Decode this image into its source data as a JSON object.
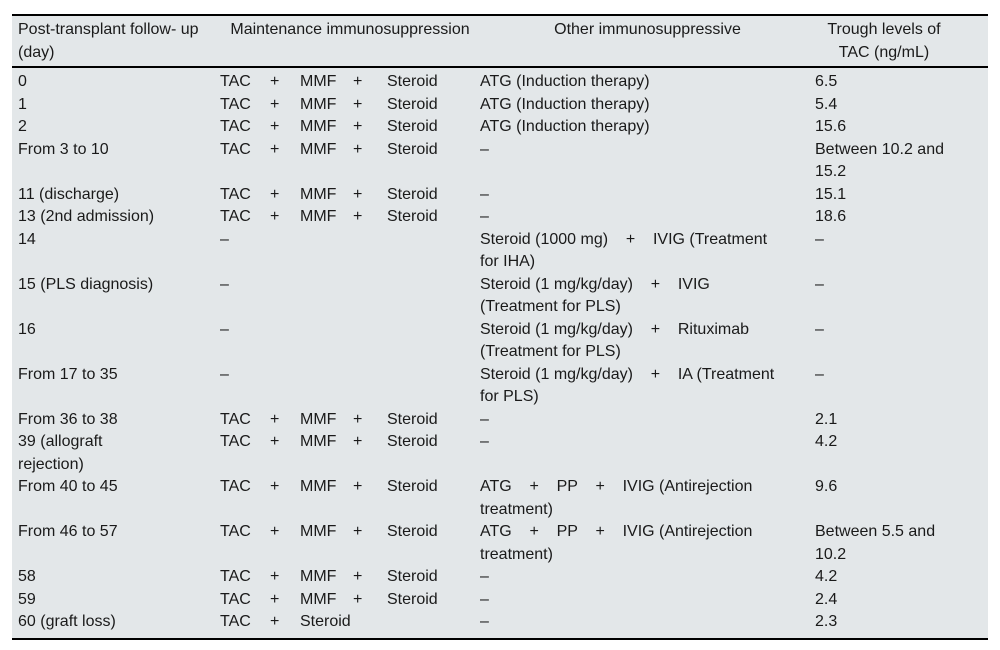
{
  "table": {
    "colors": {
      "background": "#e3e7e9",
      "rule": "#000000",
      "text": "#1a1a1a"
    },
    "headers": {
      "day": [
        "Post-transplant follow-",
        "up (day)"
      ],
      "maintenance": [
        "Maintenance",
        "immunosuppression"
      ],
      "other": [
        "Other immunosuppressive"
      ],
      "trough": [
        "Trough levels of TAC",
        "(ng/mL)"
      ]
    },
    "maintenance_slot_widths": [
      50,
      30,
      53,
      34
    ],
    "rows": [
      {
        "day": [
          "0"
        ],
        "maintenance": [
          "TAC",
          "+",
          "MMF",
          "+",
          "Steroid"
        ],
        "other": [
          "ATG (Induction therapy)"
        ],
        "trough": [
          "6.5"
        ]
      },
      {
        "day": [
          "1"
        ],
        "maintenance": [
          "TAC",
          "+",
          "MMF",
          "+",
          "Steroid"
        ],
        "other": [
          "ATG (Induction therapy)"
        ],
        "trough": [
          "5.4"
        ]
      },
      {
        "day": [
          "2"
        ],
        "maintenance": [
          "TAC",
          "+",
          "MMF",
          "+",
          "Steroid"
        ],
        "other": [
          "ATG (Induction therapy)"
        ],
        "trough": [
          "15.6"
        ]
      },
      {
        "day": [
          "From 3 to 10"
        ],
        "maintenance": [
          "TAC",
          "+",
          "MMF",
          "+",
          "Steroid"
        ],
        "other": [
          "–"
        ],
        "trough": [
          "Between 10.2 and",
          "15.2"
        ]
      },
      {
        "day": [
          "11 (discharge)"
        ],
        "maintenance": [
          "TAC",
          "+",
          "MMF",
          "+",
          "Steroid"
        ],
        "other": [
          "–"
        ],
        "trough": [
          "15.1"
        ]
      },
      {
        "day": [
          "13 (2nd admission)"
        ],
        "maintenance": [
          "TAC",
          "+",
          "MMF",
          "+",
          "Steroid"
        ],
        "other": [
          "–"
        ],
        "trough": [
          "18.6"
        ]
      },
      {
        "day": [
          "14"
        ],
        "maintenance": [
          "–"
        ],
        "other": [
          "Steroid (1000 mg)    +    IVIG (Treatment",
          "for IHA)"
        ],
        "trough": [
          "–"
        ]
      },
      {
        "day": [
          "15 (PLS diagnosis)"
        ],
        "maintenance": [
          "–"
        ],
        "other": [
          "Steroid (1 mg/kg/day)    +    IVIG",
          "(Treatment for PLS)"
        ],
        "trough": [
          "–"
        ]
      },
      {
        "day": [
          "16"
        ],
        "maintenance": [
          "–"
        ],
        "other": [
          "Steroid (1 mg/kg/day)    +    Rituximab",
          "(Treatment for PLS)"
        ],
        "trough": [
          "–"
        ]
      },
      {
        "day": [
          "From 17 to 35"
        ],
        "maintenance": [
          "–"
        ],
        "other": [
          "Steroid (1 mg/kg/day)    +    IA (Treatment",
          "for PLS)"
        ],
        "trough": [
          "–"
        ]
      },
      {
        "day": [
          "From 36 to 38"
        ],
        "maintenance": [
          "TAC",
          "+",
          "MMF",
          "+",
          "Steroid"
        ],
        "other": [
          "–"
        ],
        "trough": [
          "2.1"
        ]
      },
      {
        "day": [
          "39 (allograft",
          "rejection)"
        ],
        "maintenance": [
          "TAC",
          "+",
          "MMF",
          "+",
          "Steroid"
        ],
        "other": [
          "–"
        ],
        "trough": [
          "4.2"
        ]
      },
      {
        "day": [
          "From 40 to 45"
        ],
        "maintenance": [
          "TAC",
          "+",
          "MMF",
          "+",
          "Steroid"
        ],
        "other": [
          "ATG    +    PP    +    IVIG (Antirejection",
          "treatment)"
        ],
        "trough": [
          "9.6"
        ]
      },
      {
        "day": [
          "From 46 to 57"
        ],
        "maintenance": [
          "TAC",
          "+",
          "MMF",
          "+",
          "Steroid"
        ],
        "other": [
          "ATG    +    PP    +    IVIG (Antirejection",
          "treatment)"
        ],
        "trough": [
          "Between 5.5 and",
          "10.2"
        ]
      },
      {
        "day": [
          "58"
        ],
        "maintenance": [
          "TAC",
          "+",
          "MMF",
          "+",
          "Steroid"
        ],
        "other": [
          "–"
        ],
        "trough": [
          "4.2"
        ]
      },
      {
        "day": [
          "59"
        ],
        "maintenance": [
          "TAC",
          "+",
          "MMF",
          "+",
          "Steroid"
        ],
        "other": [
          "–"
        ],
        "trough": [
          "2.4"
        ]
      },
      {
        "day": [
          "60 (graft loss)"
        ],
        "maintenance": [
          "TAC",
          "+",
          "Steroid"
        ],
        "other": [
          "–"
        ],
        "trough": [
          "2.3"
        ]
      }
    ]
  }
}
